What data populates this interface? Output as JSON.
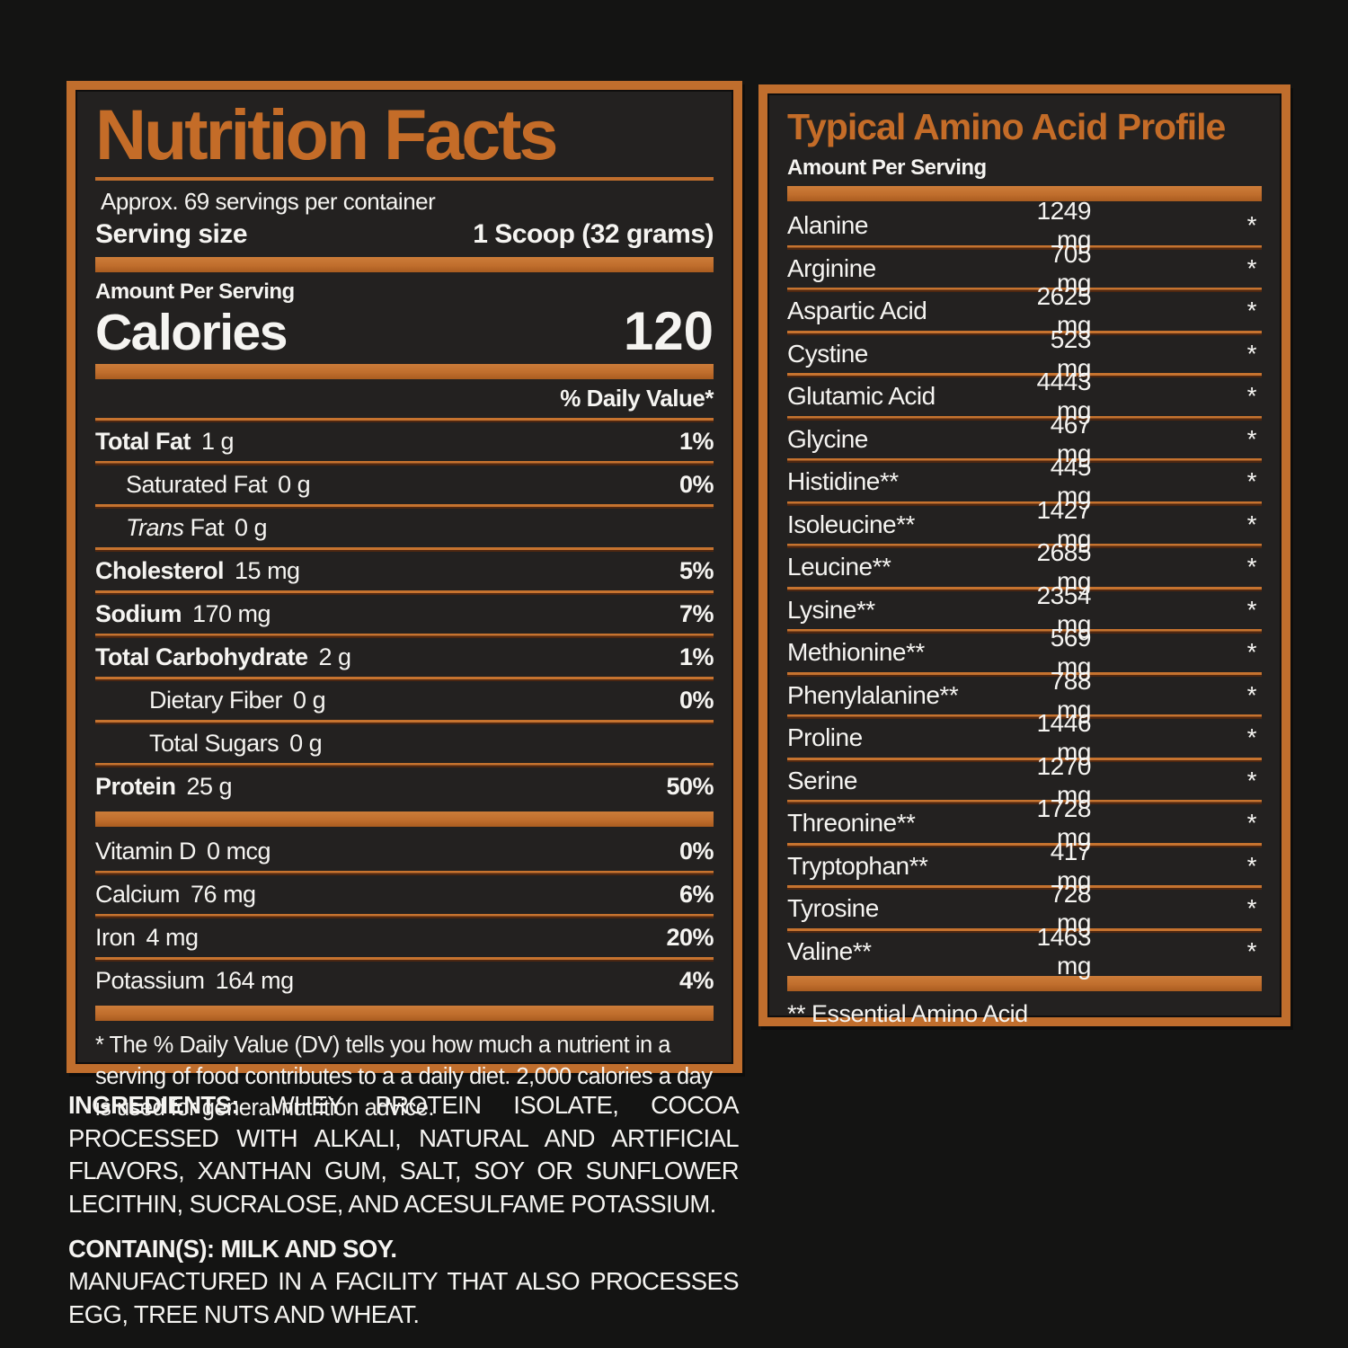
{
  "colors": {
    "orange": "#C06E2D",
    "orange_title": "#C46C28",
    "divider_shadow": "#4E2711",
    "panel_background": "#232120",
    "page_background": "#141413",
    "text": "#F5F4F1"
  },
  "nutrition": {
    "title": "Nutrition Facts",
    "servings_per_container": "Approx. 69 servings per container",
    "serving_size_label": "Serving size",
    "serving_size_value": "1 Scoop (32 grams)",
    "amount_per_serving_label": "Amount Per Serving",
    "calories_label": "Calories",
    "calories_value": "120",
    "daily_value_header": "% Daily Value*",
    "rows": [
      {
        "label": "Total Fat",
        "amount": "1 g",
        "dv": "1%",
        "bold": true,
        "indent": 0
      },
      {
        "label": "Saturated Fat",
        "amount": "0 g",
        "dv": "0%",
        "bold": false,
        "indent": 1
      },
      {
        "label": "Fat",
        "label_italic_prefix": "Trans",
        "amount": "0 g",
        "dv": "",
        "bold": false,
        "indent": 1
      },
      {
        "label": "Cholesterol",
        "amount": "15 mg",
        "dv": "5%",
        "bold": true,
        "indent": 0
      },
      {
        "label": "Sodium",
        "amount": "170 mg",
        "dv": "7%",
        "bold": true,
        "indent": 0
      },
      {
        "label": "Total Carbohydrate",
        "amount": "2 g",
        "dv": "1%",
        "bold": true,
        "indent": 0
      },
      {
        "label": "Dietary Fiber",
        "amount": "0 g",
        "dv": "0%",
        "bold": false,
        "indent": 2
      },
      {
        "label": "Total Sugars",
        "amount": "0 g",
        "dv": "",
        "bold": false,
        "indent": 2
      },
      {
        "label": "Protein",
        "amount": "25 g",
        "dv": "50%",
        "bold": true,
        "indent": 0
      }
    ],
    "micronutrients": [
      {
        "label": "Vitamin D",
        "amount": "0 mcg",
        "dv": "0%",
        "bold": false,
        "indent": 0
      },
      {
        "label": "Calcium",
        "amount": "76 mg",
        "dv": "6%",
        "bold": false,
        "indent": 0
      },
      {
        "label": "Iron",
        "amount": "4 mg",
        "dv": "20%",
        "bold": false,
        "indent": 0
      },
      {
        "label": "Potassium",
        "amount": "164 mg",
        "dv": "4%",
        "bold": false,
        "indent": 0
      }
    ],
    "footnote": "* The % Daily Value (DV) tells you how much a nutrient in a serving of food contributes to a a daily diet. 2,000 calories a day is used for general nutrition advice."
  },
  "amino": {
    "title": "Typical Amino Acid Profile",
    "amount_per_serving_label": "Amount Per Serving",
    "rows": [
      {
        "name": "Alanine",
        "amount": "1249 mg",
        "note": "*"
      },
      {
        "name": "Arginine",
        "amount": "705 mg",
        "note": "*"
      },
      {
        "name": "Aspartic Acid",
        "amount": "2625 mg",
        "note": "*"
      },
      {
        "name": "Cystine",
        "amount": "523 mg",
        "note": "*"
      },
      {
        "name": "Glutamic Acid",
        "amount": "4443 mg",
        "note": "*"
      },
      {
        "name": "Glycine",
        "amount": "467 mg",
        "note": "*"
      },
      {
        "name": "Histidine**",
        "amount": "445 mg",
        "note": "*"
      },
      {
        "name": "Isoleucine**",
        "amount": "1427 mg",
        "note": "*"
      },
      {
        "name": "Leucine**",
        "amount": "2685 mg",
        "note": "*"
      },
      {
        "name": "Lysine**",
        "amount": "2354 mg",
        "note": "*"
      },
      {
        "name": "Methionine**",
        "amount": "569 mg",
        "note": "*"
      },
      {
        "name": "Phenylalanine**",
        "amount": "788 mg",
        "note": "*"
      },
      {
        "name": "Proline",
        "amount": "1446 mg",
        "note": "*"
      },
      {
        "name": "Serine",
        "amount": "1270 mg",
        "note": "*"
      },
      {
        "name": "Threonine**",
        "amount": "1728 mg",
        "note": "*"
      },
      {
        "name": "Tryptophan**",
        "amount": "417 mg",
        "note": "*"
      },
      {
        "name": "Tyrosine",
        "amount": "728 mg",
        "note": "*"
      },
      {
        "name": "Valine**",
        "amount": "1463 mg",
        "note": "*"
      }
    ],
    "footnote": "** Essential Amino Acid"
  },
  "ingredients": {
    "label": "INGREDIENTS:",
    "text": "WHEY PROTEIN ISOLATE, COCOA PROCESSED WITH ALKALI, NATURAL AND ARTIFICIAL FLAVORS, XANTHAN GUM, SALT, SOY OR SUNFLOWER LECITHIN, SUCRALOSE, AND ACESULFAME POTASSIUM.",
    "contains": "CONTAIN(S): MILK AND SOY.",
    "facility": "MANUFACTURED IN A FACILITY THAT ALSO PROCESSES EGG, TREE NUTS AND WHEAT."
  }
}
